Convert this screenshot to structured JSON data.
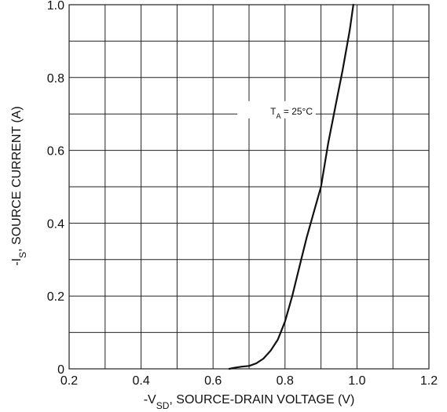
{
  "chart_data": {
    "type": "line",
    "xlabel": {
      "prefix": "-V",
      "sub": "SD",
      "suffix": ", SOURCE-DRAIN VOLTAGE (V)"
    },
    "ylabel": {
      "prefix": "-I",
      "sub": "S",
      "suffix": ", SOURCE CURRENT (A)"
    },
    "xlim": [
      0.2,
      1.2
    ],
    "ylim": [
      0,
      1.0
    ],
    "x_ticks": [
      0.2,
      0.4,
      0.6,
      0.8,
      1.0,
      1.2
    ],
    "x_tick_labels": [
      "0.2",
      "0.4",
      "0.6",
      "0.8",
      "1.0",
      "1.2"
    ],
    "y_ticks": [
      0,
      0.2,
      0.4,
      0.6,
      0.8,
      1.0
    ],
    "y_tick_labels": [
      "0",
      "0.2",
      "0.4",
      "0.6",
      "0.8",
      "1.0"
    ],
    "x_grid_step": 0.1,
    "y_grid_step": 0.1,
    "grid": true,
    "annotation": {
      "prefix": "T",
      "sub": "A",
      "suffix": " = 25°C",
      "x": 0.89,
      "y": 0.705
    },
    "series": [
      {
        "x": [
          0.645,
          0.66,
          0.68,
          0.7,
          0.72,
          0.74,
          0.76,
          0.78,
          0.8,
          0.82,
          0.84,
          0.86,
          0.88,
          0.9,
          0.92,
          0.94,
          0.96,
          0.98,
          0.99
        ],
        "y": [
          0.0,
          0.003,
          0.006,
          0.008,
          0.015,
          0.028,
          0.05,
          0.08,
          0.13,
          0.2,
          0.28,
          0.36,
          0.43,
          0.5,
          0.62,
          0.72,
          0.82,
          0.93,
          1.0
        ]
      }
    ]
  }
}
